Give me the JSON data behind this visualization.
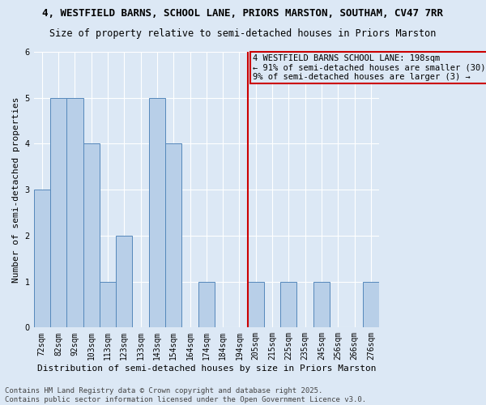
{
  "title1": "4, WESTFIELD BARNS, SCHOOL LANE, PRIORS MARSTON, SOUTHAM, CV47 7RR",
  "title2": "Size of property relative to semi-detached houses in Priors Marston",
  "xlabel": "Distribution of semi-detached houses by size in Priors Marston",
  "ylabel": "Number of semi-detached properties",
  "bin_labels": [
    "72sqm",
    "82sqm",
    "92sqm",
    "103sqm",
    "113sqm",
    "123sqm",
    "133sqm",
    "143sqm",
    "154sqm",
    "164sqm",
    "174sqm",
    "184sqm",
    "194sqm",
    "205sqm",
    "215sqm",
    "225sqm",
    "235sqm",
    "245sqm",
    "256sqm",
    "266sqm",
    "276sqm"
  ],
  "counts": [
    3,
    5,
    5,
    4,
    1,
    2,
    0,
    5,
    4,
    0,
    1,
    0,
    0,
    1,
    0,
    1,
    0,
    1,
    0,
    0,
    1
  ],
  "bar_color": "#b8cfe8",
  "bar_edge_color": "#5588bb",
  "vline_bin_index": 13,
  "vline_color": "#cc0000",
  "annotation_text": "4 WESTFIELD BARNS SCHOOL LANE: 198sqm\n← 91% of semi-detached houses are smaller (30)\n9% of semi-detached houses are larger (3) →",
  "annotation_box_color": "#cc0000",
  "ylim": [
    0,
    6
  ],
  "yticks": [
    0,
    1,
    2,
    3,
    4,
    5,
    6
  ],
  "background_color": "#dce8f5",
  "footer_text": "Contains HM Land Registry data © Crown copyright and database right 2025.\nContains public sector information licensed under the Open Government Licence v3.0.",
  "title1_fontsize": 9,
  "title2_fontsize": 8.5,
  "xlabel_fontsize": 8,
  "ylabel_fontsize": 8,
  "tick_fontsize": 7,
  "annotation_fontsize": 7.5,
  "footer_fontsize": 6.5
}
